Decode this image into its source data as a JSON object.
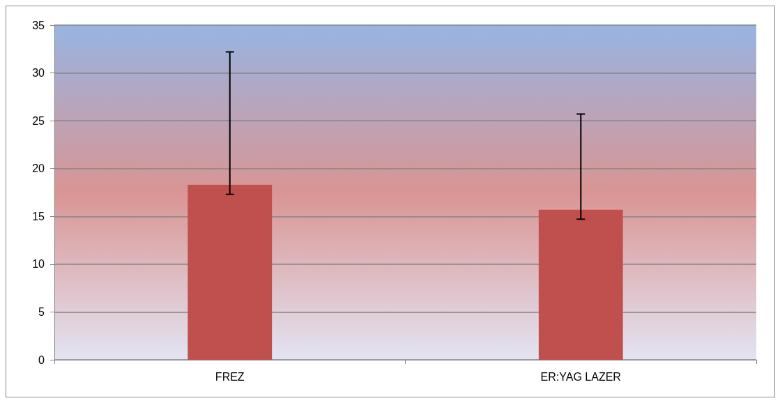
{
  "chart_data": {
    "type": "bar",
    "categories": [
      "FREZ",
      "ER:YAG LAZER"
    ],
    "values": [
      18.3,
      15.7
    ],
    "errors": [
      [
        17.3,
        32.2
      ],
      [
        14.7,
        25.7
      ]
    ],
    "color": "#c0504d",
    "ylim": [
      0,
      35
    ],
    "yticks": [
      0,
      5,
      10,
      15,
      20,
      25,
      30,
      35
    ],
    "grid": "y"
  }
}
